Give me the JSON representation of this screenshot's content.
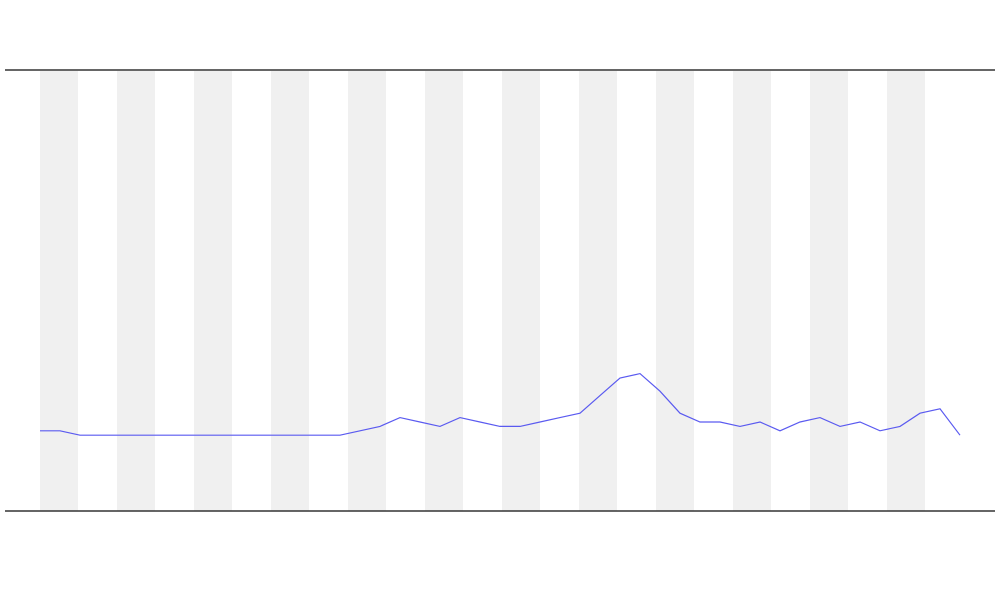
{
  "chart_data": {
    "type": "line",
    "categories": [
      null,
      null,
      null,
      null,
      null,
      null,
      null,
      null,
      null,
      null,
      null,
      null,
      null,
      null,
      null,
      null,
      null,
      null,
      null,
      null,
      null,
      null,
      null,
      null,
      null,
      null,
      null,
      null,
      null,
      null,
      null,
      null,
      null,
      null,
      null,
      null,
      null,
      null,
      null,
      null,
      null,
      null,
      null,
      null,
      null,
      null,
      null
    ],
    "series": [
      {
        "color": "#5a5af0",
        "values": [
          18,
          18,
          17,
          17,
          17,
          17,
          17,
          17,
          17,
          17,
          17,
          17,
          17,
          17,
          17,
          17,
          18,
          19,
          21,
          20,
          19,
          21,
          20,
          19,
          19,
          20,
          21,
          22,
          26,
          30,
          31,
          27,
          22,
          20,
          20,
          19,
          20,
          18,
          20,
          21,
          19,
          20,
          18,
          19,
          22,
          23,
          17
        ]
      }
    ],
    "ylim": [
      0,
      100
    ]
  }
}
